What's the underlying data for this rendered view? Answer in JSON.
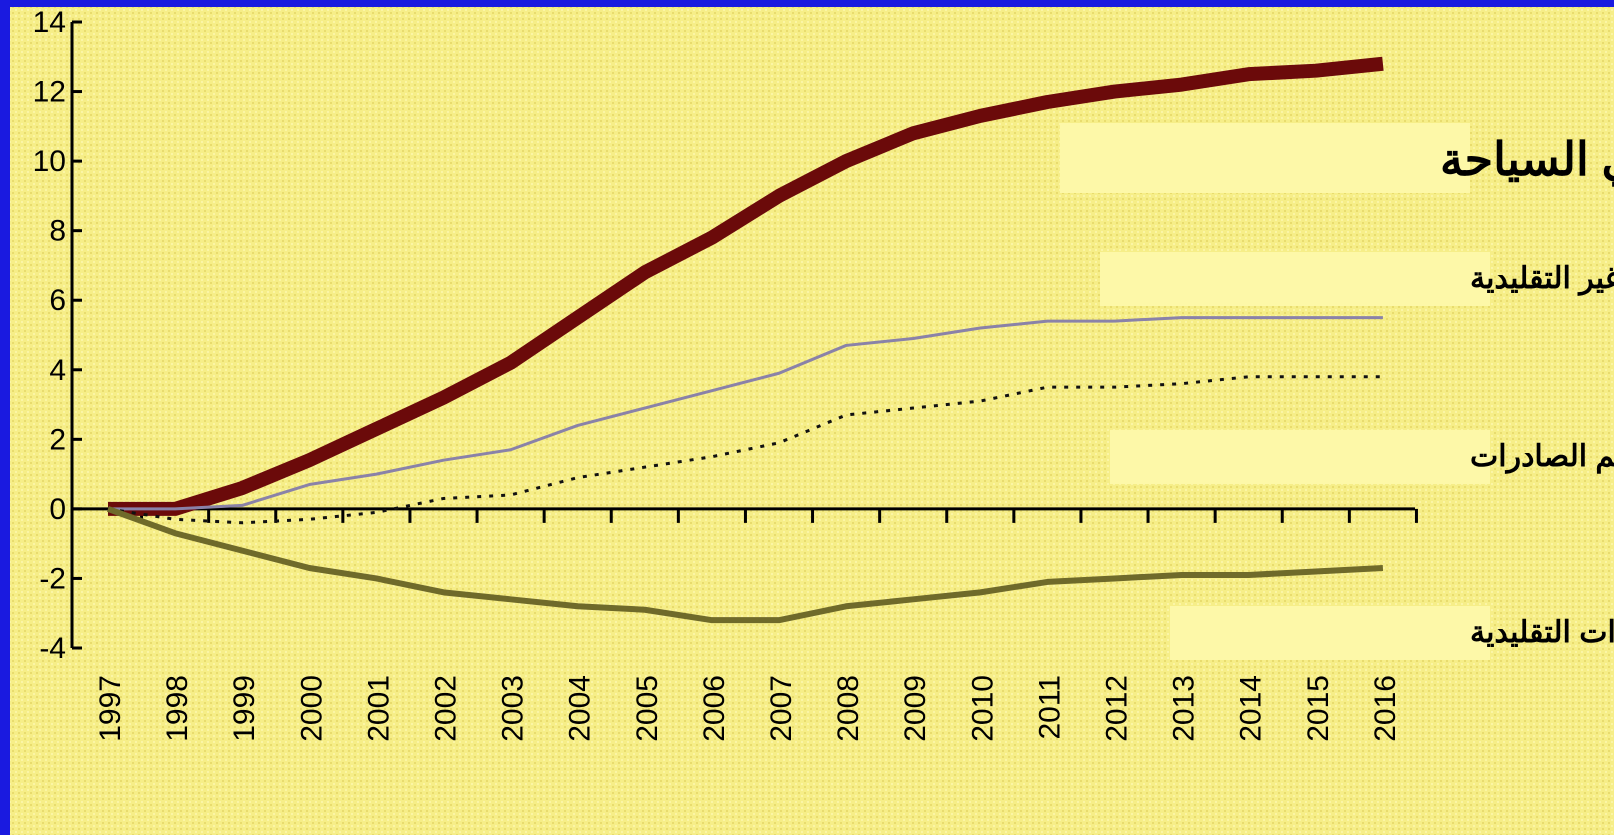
{
  "chart_data": {
    "type": "line",
    "categories": [
      "1997",
      "1998",
      "1999",
      "2000",
      "2001",
      "2002",
      "2003",
      "2004",
      "2005",
      "2006",
      "2007",
      "2008",
      "2009",
      "2010",
      "2011",
      "2012",
      "2013",
      "2014",
      "2015",
      "2016"
    ],
    "series": [
      {
        "name": "إجمالي السياحة",
        "color": "#6b0a0a",
        "values": [
          0,
          0,
          0.6,
          1.4,
          2.3,
          3.2,
          4.2,
          5.5,
          6.8,
          7.8,
          9.0,
          10.0,
          10.8,
          11.3,
          11.7,
          12.0,
          12.2,
          12.5,
          12.6,
          12.8
        ]
      },
      {
        "name": "الصادرات غير التقليدية",
        "color": "#8a82a8",
        "values": [
          0,
          0,
          0.1,
          0.7,
          1.0,
          1.4,
          1.7,
          2.4,
          2.9,
          3.4,
          3.9,
          4.7,
          4.9,
          5.2,
          5.4,
          5.4,
          5.5,
          5.5,
          5.5,
          5.5
        ]
      },
      {
        "name": "إجمالي حجم الصادرات",
        "color": "#111111",
        "values": [
          0,
          -0.3,
          -0.4,
          -0.3,
          -0.1,
          0.3,
          0.4,
          0.9,
          1.2,
          1.5,
          1.9,
          2.7,
          2.9,
          3.1,
          3.5,
          3.5,
          3.6,
          3.8,
          3.8,
          3.8
        ]
      },
      {
        "name": "الصادرات التقليدية",
        "color": "#6f6a2a",
        "values": [
          0,
          -0.7,
          -1.2,
          -1.7,
          -2.0,
          -2.4,
          -2.6,
          -2.8,
          -2.9,
          -3.2,
          -3.2,
          -2.8,
          -2.6,
          -2.4,
          -2.1,
          -2.0,
          -1.9,
          -1.9,
          -1.8,
          -1.7
        ]
      }
    ],
    "ylim": [
      -4,
      14
    ],
    "yticks": [
      -4,
      -2,
      0,
      2,
      4,
      6,
      8,
      10,
      12,
      14
    ]
  }
}
